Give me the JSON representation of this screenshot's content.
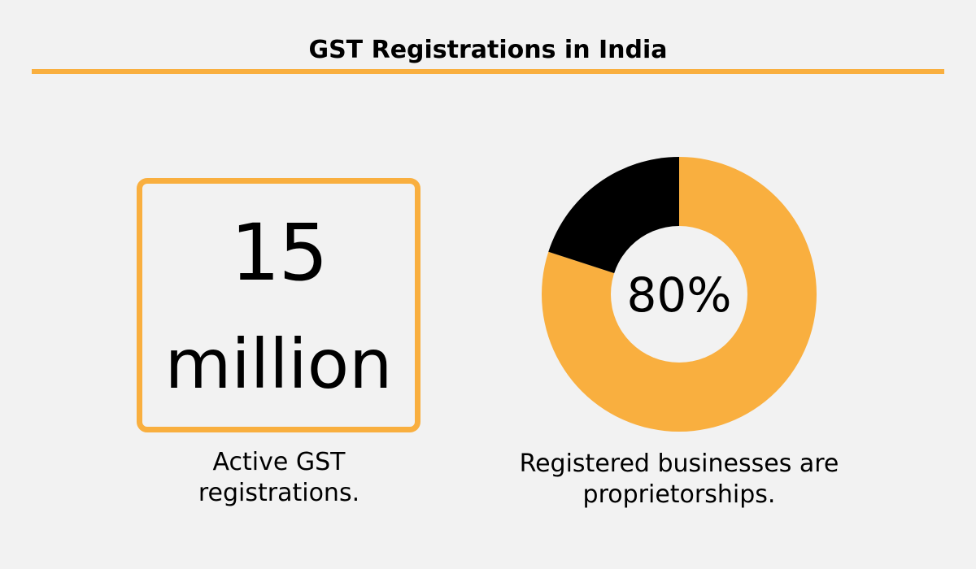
{
  "title": "GST Registrations in India",
  "colors": {
    "accent": "#F9AF3F",
    "dark": "#000000",
    "background": "#F2F2F2",
    "donut_hole": "#F2F2F2"
  },
  "stat": {
    "value": "15",
    "unit": "million",
    "caption_line1": "Active GST",
    "caption_line2": "registrations."
  },
  "chart_data": {
    "type": "pie",
    "style": "donut",
    "center_label": "80%",
    "caption_line1": "Registered businesses are",
    "caption_line2": "proprietorships.",
    "slices": [
      {
        "value": 80,
        "color": "#F9AF3F"
      },
      {
        "value": 20,
        "color": "#000000"
      }
    ]
  }
}
